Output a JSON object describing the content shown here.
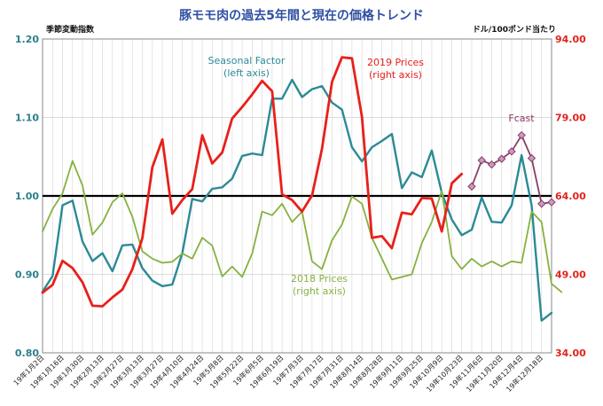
{
  "chart_data": {
    "type": "line",
    "title": "豚モモ肉の過去5年間と現在の価格トレンド",
    "left_axis": {
      "label": "季節変動指数",
      "ylim": [
        0.8,
        1.2
      ],
      "ticks": [
        "0.80",
        "0.90",
        "1.00",
        "1.10",
        "1.20"
      ]
    },
    "right_axis": {
      "label": "ドル/100ポンド当たり",
      "ylim": [
        34.0,
        94.0
      ],
      "ticks": [
        "34.00",
        "49.00",
        "64.00",
        "79.00",
        "94.00"
      ]
    },
    "reference_line": 1.0,
    "x_labels": [
      "19年1月2日",
      "19年1月16日",
      "19年1月30日",
      "19年2月13日",
      "19年2月27日",
      "19年3月13日",
      "19年3月27日",
      "19年4月10日",
      "19年4月24日",
      "19年5月8日",
      "19年5月22日",
      "19年6月5日",
      "19年6月19日",
      "19年7月3日",
      "19年7月17日",
      "19年7月31日",
      "19年8月14日",
      "19年8月28日",
      "19年9月11日",
      "19年9月25日",
      "19年10月9日",
      "19年10月23日",
      "19年11月6日",
      "19年11月20日",
      "19年12月4日",
      "19年12月18日"
    ],
    "series": [
      {
        "name": "Seasonal Factor",
        "annotation": [
          "Seasonal Factor",
          "(left axis)"
        ],
        "axis": "left",
        "color": "#2b8a96",
        "values": [
          0.878,
          0.898,
          0.988,
          0.994,
          0.942,
          0.917,
          0.927,
          0.904,
          0.937,
          0.938,
          0.908,
          0.892,
          0.885,
          0.887,
          0.927,
          0.996,
          0.993,
          1.009,
          1.011,
          1.022,
          1.051,
          1.054,
          1.052,
          1.124,
          1.124,
          1.148,
          1.126,
          1.136,
          1.14,
          1.119,
          1.11,
          1.062,
          1.044,
          1.062,
          1.07,
          1.079,
          1.01,
          1.03,
          1.024,
          1.058,
          1.004,
          0.97,
          0.95,
          0.957,
          0.998,
          0.967,
          0.966,
          0.988,
          1.052,
          0.988,
          0.841,
          0.851
        ]
      },
      {
        "name": "2018 Prices",
        "annotation": [
          "2018 Prices",
          "(right axis)"
        ],
        "axis": "right",
        "color": "#86b140",
        "values": [
          57.2,
          61.5,
          64.5,
          70.7,
          66.0,
          56.6,
          58.9,
          62.8,
          64.5,
          60.0,
          53.4,
          52.0,
          51.2,
          51.4,
          53.0,
          52.0,
          56.0,
          54.5,
          48.6,
          50.5,
          48.5,
          53.0,
          61.0,
          60.3,
          62.5,
          59.0,
          61.0,
          51.5,
          50.0,
          55.5,
          58.5,
          63.9,
          62.5,
          56.0,
          52.0,
          48.0,
          48.5,
          49.0,
          55.0,
          59.0,
          65.0,
          52.5,
          50.0,
          52.0,
          50.5,
          51.5,
          50.5,
          51.5,
          51.2,
          61.0,
          59.0,
          47.2,
          45.6
        ]
      },
      {
        "name": "2019 Prices",
        "annotation": [
          "2019 Prices",
          "(right axis)"
        ],
        "axis": "right",
        "color": "#e8201a",
        "values": [
          45.5,
          47.0,
          51.6,
          50.2,
          47.5,
          43.0,
          42.9,
          44.6,
          46.1,
          50.0,
          55.9,
          69.5,
          74.8,
          60.6,
          63.2,
          65.3,
          75.6,
          70.2,
          72.3,
          78.8,
          81.0,
          83.4,
          86.0,
          84.0,
          64.3,
          63.2,
          61.0,
          64.1,
          73.0,
          85.8,
          90.5,
          90.3,
          79.1,
          56.0,
          56.3,
          54.0,
          60.8,
          60.5,
          63.6,
          63.5,
          57.2,
          66.4,
          68.2
        ]
      },
      {
        "name": "Fcast",
        "annotation": [
          "Fcast"
        ],
        "axis": "right",
        "color": "#8a3e66",
        "values": [
          null,
          null,
          null,
          null,
          null,
          null,
          null,
          null,
          null,
          null,
          null,
          null,
          null,
          null,
          null,
          null,
          null,
          null,
          null,
          null,
          null,
          null,
          null,
          null,
          null,
          null,
          null,
          null,
          null,
          null,
          null,
          null,
          null,
          null,
          null,
          null,
          null,
          null,
          null,
          null,
          null,
          null,
          null,
          65.8,
          70.8,
          70.0,
          71.1,
          72.5,
          75.6,
          71.2,
          62.5,
          62.8
        ]
      }
    ]
  }
}
